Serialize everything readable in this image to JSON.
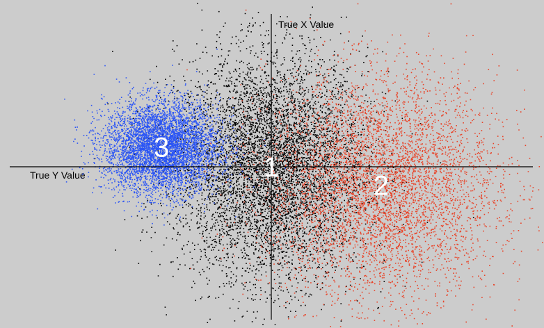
{
  "chart_data": {
    "type": "scatter",
    "title": "",
    "xlabel": "True Y Value",
    "ylabel": "True X Value",
    "xlim": [
      -1,
      1
    ],
    "ylim": [
      -1,
      1
    ],
    "grid": false,
    "legend": "none",
    "series": [
      {
        "cluster_label": "1",
        "color": "#000000",
        "center": [
          0.0,
          0.0
        ],
        "spread": [
          0.18,
          0.36
        ],
        "approx_points": 6500
      },
      {
        "cluster_label": "2",
        "color": "#e8452a",
        "center": [
          0.42,
          -0.12
        ],
        "spread": [
          0.22,
          0.36
        ],
        "approx_points": 9000
      },
      {
        "cluster_label": "3",
        "color": "#2b55f5",
        "center": [
          -0.42,
          0.13
        ],
        "spread": [
          0.11,
          0.15
        ],
        "approx_points": 6500
      }
    ]
  }
}
